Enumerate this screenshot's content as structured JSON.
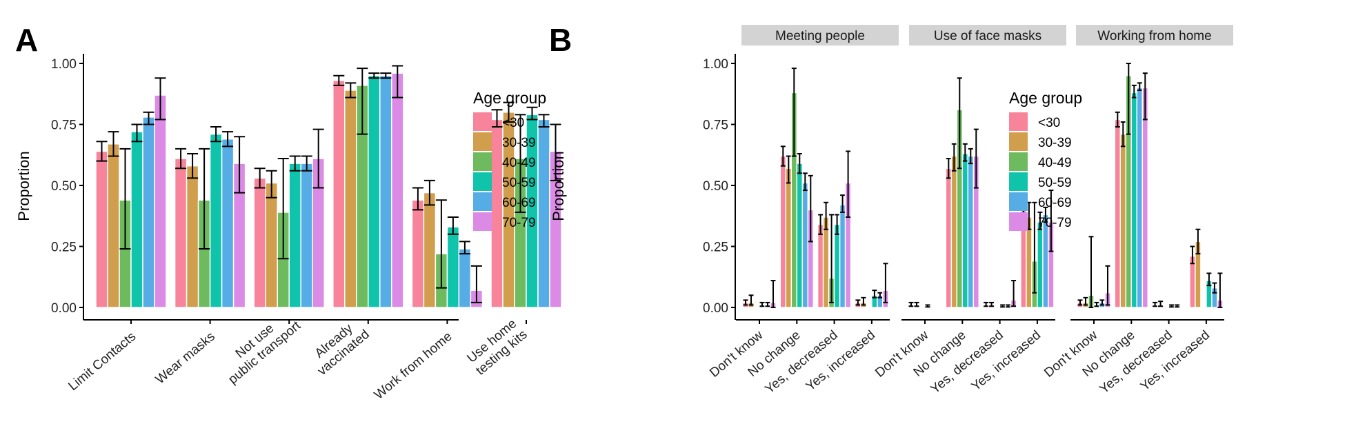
{
  "age_groups": [
    "<30",
    "30-39",
    "40-49",
    "50-59",
    "60-69",
    "70-79"
  ],
  "colors": [
    "#F8766D",
    "#C49A00",
    "#53B400",
    "#00C094",
    "#00B6EB",
    "#DF8BE2"
  ],
  "display_colors": [
    "#F7849A",
    "#D09E4C",
    "#6DBB5E",
    "#0FC4AB",
    "#56ADE6",
    "#DB8BE5"
  ],
  "chart_data": [
    {
      "panel": "A",
      "type": "bar",
      "grouped": true,
      "title": "",
      "xlabel": "",
      "ylabel": "Proportion",
      "ylim": [
        -0.04,
        1.05
      ],
      "yticks": [
        0.0,
        0.25,
        0.5,
        0.75,
        1.0
      ],
      "ytick_labels": [
        "0.00",
        "0.25",
        "0.50",
        "0.75",
        "1.00"
      ],
      "grid": false,
      "legend": {
        "title": "Age group",
        "position": "right",
        "entries": [
          "<30",
          "30-39",
          "40-49",
          "50-59",
          "60-69",
          "70-79"
        ]
      },
      "categories": [
        "Limit Contacts",
        "Wear masks",
        "Not use\npublic transport",
        "Already\nvaccinated",
        "Work from home",
        "Use home\ntesting kits"
      ],
      "series": [
        {
          "name": "<30",
          "values": [
            0.64,
            0.61,
            0.53,
            0.93,
            0.44,
            0.77
          ],
          "lower": [
            0.6,
            0.57,
            0.49,
            0.91,
            0.4,
            0.74
          ],
          "upper": [
            0.68,
            0.65,
            0.57,
            0.95,
            0.49,
            0.81
          ]
        },
        {
          "name": "30-39",
          "values": [
            0.67,
            0.58,
            0.51,
            0.89,
            0.47,
            0.8
          ],
          "lower": [
            0.62,
            0.53,
            0.45,
            0.86,
            0.42,
            0.76
          ],
          "upper": [
            0.72,
            0.63,
            0.56,
            0.92,
            0.52,
            0.84
          ]
        },
        {
          "name": "40-49",
          "values": [
            0.44,
            0.44,
            0.39,
            0.91,
            0.22,
            0.61
          ],
          "lower": [
            0.24,
            0.24,
            0.2,
            0.71,
            0.08,
            0.39
          ],
          "upper": [
            0.65,
            0.65,
            0.61,
            0.98,
            0.44,
            0.79
          ]
        },
        {
          "name": "50-59",
          "values": [
            0.72,
            0.71,
            0.59,
            0.95,
            0.33,
            0.79
          ],
          "lower": [
            0.68,
            0.68,
            0.56,
            0.94,
            0.3,
            0.77
          ],
          "upper": [
            0.75,
            0.74,
            0.62,
            0.96,
            0.37,
            0.82
          ]
        },
        {
          "name": "60-69",
          "values": [
            0.78,
            0.69,
            0.59,
            0.95,
            0.24,
            0.77
          ],
          "lower": [
            0.75,
            0.66,
            0.56,
            0.94,
            0.22,
            0.74
          ],
          "upper": [
            0.8,
            0.72,
            0.62,
            0.96,
            0.27,
            0.79
          ]
        },
        {
          "name": "70-79",
          "values": [
            0.87,
            0.59,
            0.61,
            0.96,
            0.07,
            0.64
          ],
          "lower": [
            0.77,
            0.47,
            0.49,
            0.86,
            0.02,
            0.52
          ],
          "upper": [
            0.94,
            0.7,
            0.73,
            0.99,
            0.17,
            0.75
          ]
        }
      ]
    },
    {
      "panel": "B",
      "type": "bar",
      "grouped": true,
      "faceted": true,
      "title": "",
      "xlabel": "",
      "ylabel": "Proportion",
      "ylim": [
        -0.04,
        1.05
      ],
      "yticks": [
        0.0,
        0.25,
        0.5,
        0.75,
        1.0
      ],
      "ytick_labels": [
        "0.00",
        "0.25",
        "0.50",
        "0.75",
        "1.00"
      ],
      "grid": false,
      "legend": {
        "title": "Age group",
        "position": "right",
        "entries": [
          "<30",
          "30-39",
          "40-49",
          "50-59",
          "60-69",
          "70-79"
        ]
      },
      "categories": [
        "Don't know",
        "No change",
        "Yes, decreased",
        "Yes, increased"
      ],
      "facets": [
        {
          "name": "Meeting people",
          "series": [
            {
              "name": "<30",
              "values": [
                0.02,
                0.62,
                0.34,
                0.02
              ],
              "lower": [
                0.01,
                0.58,
                0.3,
                0.01
              ],
              "upper": [
                0.03,
                0.66,
                0.38,
                0.03
              ]
            },
            {
              "name": "30-39",
              "values": [
                0.02,
                0.57,
                0.37,
                0.02
              ],
              "lower": [
                0.01,
                0.51,
                0.32,
                0.01
              ],
              "upper": [
                0.05,
                0.62,
                0.43,
                0.04
              ]
            },
            {
              "name": "40-49",
              "values": [
                0.0,
                0.88,
                0.12,
                0.0
              ],
              "lower": null,
              "upper": null,
              "ci": [
                [
                  null,
                  null
                ],
                [
                  0.62,
                  0.98
                ],
                [
                  0.02,
                  0.38
                ],
                [
                  null,
                  null
                ]
              ]
            },
            {
              "name": "50-59",
              "values": [
                0.01,
                0.59,
                0.34,
                0.05
              ],
              "lower": [
                0.005,
                0.55,
                0.3,
                0.04
              ],
              "upper": [
                0.02,
                0.63,
                0.38,
                0.07
              ]
            },
            {
              "name": "60-69",
              "values": [
                0.01,
                0.51,
                0.42,
                0.05
              ],
              "lower": [
                0.005,
                0.48,
                0.39,
                0.04
              ],
              "upper": [
                0.02,
                0.55,
                0.46,
                0.06
              ]
            },
            {
              "name": "70-79",
              "values": [
                0.02,
                0.4,
                0.51,
                0.07
              ],
              "lower": [
                0.0,
                0.27,
                0.37,
                0.02
              ],
              "upper": [
                0.11,
                0.54,
                0.64,
                0.18
              ]
            }
          ]
        },
        {
          "name": "Use of face masks",
          "series": [
            {
              "name": "<30",
              "values": [
                0.01,
                0.57,
                0.01,
                0.41
              ],
              "lower": [
                0.005,
                0.53,
                0.005,
                0.37
              ],
              "upper": [
                0.02,
                0.61,
                0.02,
                0.45
              ]
            },
            {
              "name": "30-39",
              "values": [
                0.01,
                0.62,
                0.01,
                0.37
              ],
              "lower": [
                0.005,
                0.56,
                0.005,
                0.32
              ],
              "upper": [
                0.02,
                0.67,
                0.02,
                0.43
              ]
            },
            {
              "name": "40-49",
              "values": [
                0.0,
                0.81,
                0.0,
                0.19
              ],
              "lower": null,
              "upper": null,
              "ci": [
                [
                  null,
                  null
                ],
                [
                  0.57,
                  0.94
                ],
                [
                  null,
                  null
                ],
                [
                  0.06,
                  0.43
                ]
              ]
            },
            {
              "name": "50-59",
              "values": [
                0.005,
                0.63,
                0.005,
                0.35
              ],
              "lower": [
                0.002,
                0.6,
                0.002,
                0.32
              ],
              "upper": [
                0.01,
                0.67,
                0.01,
                0.39
              ]
            },
            {
              "name": "60-69",
              "values": [
                0.0,
                0.62,
                0.005,
                0.38
              ],
              "lower": null,
              "upper": null,
              "ci": [
                [
                  null,
                  null
                ],
                [
                  0.59,
                  0.65
                ],
                [
                  0.002,
                  0.01
                ],
                [
                  0.35,
                  0.41
                ]
              ]
            },
            {
              "name": "70-79",
              "values": [
                0.0,
                0.62,
                0.03,
                0.35
              ],
              "lower": null,
              "upper": null,
              "ci": [
                [
                  null,
                  null
                ],
                [
                  0.49,
                  0.73
                ],
                [
                  0.005,
                  0.11
                ],
                [
                  0.23,
                  0.48
                ]
              ]
            }
          ]
        },
        {
          "name": "Working from home",
          "series": [
            {
              "name": "<30",
              "values": [
                0.02,
                0.77,
                0.01,
                0.21
              ],
              "lower": [
                0.01,
                0.74,
                0.005,
                0.18
              ],
              "upper": [
                0.03,
                0.8,
                0.02,
                0.25
              ]
            },
            {
              "name": "30-39",
              "values": [
                0.02,
                0.71,
                0.01,
                0.27
              ],
              "lower": [
                0.01,
                0.66,
                0.005,
                0.22
              ],
              "upper": [
                0.04,
                0.76,
                0.025,
                0.32
              ]
            },
            {
              "name": "40-49",
              "values": [
                0.05,
                0.95,
                0.0,
                0.0
              ],
              "lower": null,
              "upper": null,
              "ci": [
                [
                  0.0,
                  0.29
                ],
                [
                  0.71,
                  1.0
                ],
                [
                  null,
                  null
                ],
                [
                  null,
                  null
                ]
              ]
            },
            {
              "name": "50-59",
              "values": [
                0.01,
                0.88,
                0.005,
                0.11
              ],
              "lower": [
                0.005,
                0.86,
                0.002,
                0.09
              ],
              "upper": [
                0.02,
                0.91,
                0.01,
                0.14
              ]
            },
            {
              "name": "60-69",
              "values": [
                0.02,
                0.9,
                0.005,
                0.08
              ],
              "lower": [
                0.01,
                0.89,
                0.002,
                0.06
              ],
              "upper": [
                0.03,
                0.92,
                0.01,
                0.1
              ]
            },
            {
              "name": "70-79",
              "values": [
                0.06,
                0.9,
                0.0,
                0.03
              ],
              "lower": null,
              "upper": null,
              "ci": [
                [
                  0.01,
                  0.17
                ],
                [
                  0.77,
                  0.96
                ],
                [
                  null,
                  null
                ],
                [
                  0.0,
                  0.14
                ]
              ]
            }
          ]
        }
      ]
    }
  ],
  "labels": {
    "panel_a": "A",
    "panel_b": "B",
    "ylabel": "Proportion",
    "legend_title": "Age group"
  }
}
